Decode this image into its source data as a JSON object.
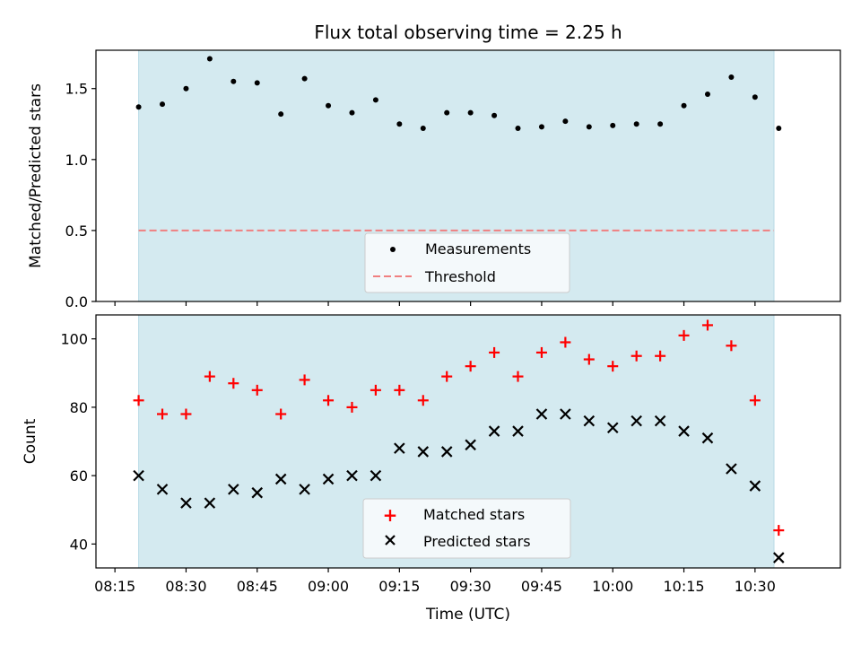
{
  "title": "Flux total observing time = 2.25 h",
  "colors": {
    "span_fill": "#d4eaf0",
    "span_edge": "#b9dbe6",
    "measurement": "#000000",
    "threshold": "#f08080",
    "matched": "#ff0000",
    "predicted": "#000000"
  },
  "chart_data": [
    {
      "type": "scatter",
      "ylabel": "Matched/Predicted stars",
      "ylim": [
        0,
        1.77
      ],
      "yticks": [
        "0.0",
        "0.5",
        "1.0",
        "1.5"
      ],
      "ytick_values": [
        0,
        0.5,
        1.0,
        1.5
      ],
      "xlim": [
        "08:11",
        "10:48"
      ],
      "shaded_span": [
        "08:20",
        "10:34"
      ],
      "threshold": 0.5,
      "legend": {
        "placement": "lower center",
        "entries": [
          "Measurements",
          "Threshold"
        ]
      },
      "series": [
        {
          "name": "Measurements",
          "x": [
            "08:20",
            "08:25",
            "08:30",
            "08:35",
            "08:40",
            "08:45",
            "08:50",
            "08:55",
            "09:00",
            "09:05",
            "09:10",
            "09:15",
            "09:20",
            "09:25",
            "09:30",
            "09:35",
            "09:40",
            "09:45",
            "09:50",
            "09:55",
            "10:00",
            "10:05",
            "10:10",
            "10:15",
            "10:20",
            "10:25",
            "10:30",
            "10:35"
          ],
          "y": [
            1.37,
            1.39,
            1.5,
            1.71,
            1.55,
            1.54,
            1.32,
            1.57,
            1.38,
            1.33,
            1.42,
            1.25,
            1.22,
            1.33,
            1.33,
            1.31,
            1.22,
            1.23,
            1.27,
            1.23,
            1.24,
            1.25,
            1.25,
            1.38,
            1.46,
            1.58,
            1.44,
            1.22
          ]
        }
      ]
    },
    {
      "type": "scatter",
      "ylabel": "Count",
      "xlabel": "Time (UTC)",
      "ylim": [
        33,
        107
      ],
      "yticks": [
        "40",
        "60",
        "80",
        "100"
      ],
      "ytick_values": [
        40,
        60,
        80,
        100
      ],
      "xlim": [
        "08:11",
        "10:48"
      ],
      "xticks": [
        "08:15",
        "08:30",
        "08:45",
        "09:00",
        "09:15",
        "09:30",
        "09:45",
        "10:00",
        "10:15",
        "10:30"
      ],
      "shaded_span": [
        "08:20",
        "10:34"
      ],
      "legend": {
        "placement": "lower center",
        "entries": [
          "Matched stars",
          "Predicted stars"
        ]
      },
      "series": [
        {
          "name": "Matched stars",
          "x": [
            "08:20",
            "08:25",
            "08:30",
            "08:35",
            "08:40",
            "08:45",
            "08:50",
            "08:55",
            "09:00",
            "09:05",
            "09:10",
            "09:15",
            "09:20",
            "09:25",
            "09:30",
            "09:35",
            "09:40",
            "09:45",
            "09:50",
            "09:55",
            "10:00",
            "10:05",
            "10:10",
            "10:15",
            "10:20",
            "10:25",
            "10:30",
            "10:35"
          ],
          "y": [
            82,
            78,
            78,
            89,
            87,
            85,
            78,
            88,
            82,
            80,
            85,
            85,
            82,
            89,
            92,
            96,
            89,
            96,
            99,
            94,
            92,
            95,
            95,
            101,
            104,
            98,
            82,
            44
          ]
        },
        {
          "name": "Predicted stars",
          "x": [
            "08:20",
            "08:25",
            "08:30",
            "08:35",
            "08:40",
            "08:45",
            "08:50",
            "08:55",
            "09:00",
            "09:05",
            "09:10",
            "09:15",
            "09:20",
            "09:25",
            "09:30",
            "09:35",
            "09:40",
            "09:45",
            "09:50",
            "09:55",
            "10:00",
            "10:05",
            "10:10",
            "10:15",
            "10:20",
            "10:25",
            "10:30",
            "10:35"
          ],
          "y": [
            60,
            56,
            52,
            52,
            56,
            55,
            59,
            56,
            59,
            60,
            60,
            68,
            67,
            67,
            69,
            73,
            73,
            78,
            78,
            76,
            74,
            76,
            76,
            73,
            71,
            62,
            57,
            36
          ]
        }
      ]
    }
  ]
}
